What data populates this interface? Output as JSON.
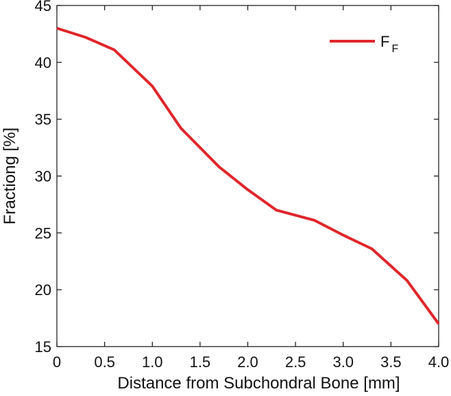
{
  "chart_data": {
    "type": "line",
    "title": "",
    "xlabel": "Distance from Subchondral Bone [mm]",
    "ylabel": "Fractiong [%]",
    "xlim": [
      0,
      4.0
    ],
    "ylim": [
      15,
      45
    ],
    "xticks": [
      0,
      0.5,
      1.0,
      1.5,
      2.0,
      2.5,
      3.0,
      3.5,
      4.0
    ],
    "xtick_labels": [
      "0",
      "0.5",
      "1.0",
      "1.5",
      "2.0",
      "2.5",
      "3.0",
      "3.5",
      "4.0"
    ],
    "yticks": [
      15,
      20,
      25,
      30,
      35,
      40,
      45
    ],
    "ytick_labels": [
      "15",
      "20",
      "25",
      "30",
      "35",
      "40",
      "45"
    ],
    "grid": false,
    "legend_position": "top-right",
    "series": [
      {
        "name": "F",
        "name_subscript": "F",
        "color": "#e0262b",
        "x": [
          0,
          0.3,
          0.6,
          1.0,
          1.3,
          1.7,
          2.0,
          2.3,
          2.7,
          3.0,
          3.3,
          3.67,
          4.0
        ],
        "y": [
          43.0,
          42.2,
          41.1,
          37.9,
          34.2,
          30.8,
          28.8,
          27.0,
          26.1,
          24.8,
          23.6,
          20.8,
          17.0
        ]
      }
    ]
  }
}
